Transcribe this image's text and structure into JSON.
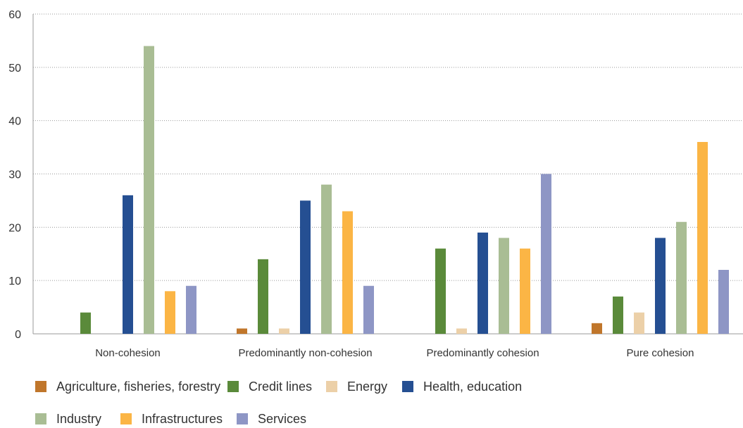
{
  "chart_data": {
    "type": "bar",
    "categories": [
      "Non-cohesion",
      "Predominantly non-cohesion",
      "Predominantly cohesion",
      "Pure cohesion"
    ],
    "series": [
      {
        "name": "Agriculture, fisheries, forestry",
        "color": "#c0762b",
        "values": [
          0,
          1,
          0,
          2
        ]
      },
      {
        "name": "Credit lines",
        "color": "#5a8a3a",
        "values": [
          4,
          14,
          16,
          7
        ]
      },
      {
        "name": "Energy",
        "color": "#ecd0a8",
        "values": [
          0,
          1,
          1,
          4
        ]
      },
      {
        "name": "Health, education",
        "color": "#254f92",
        "values": [
          26,
          25,
          19,
          18
        ]
      },
      {
        "name": "Industry",
        "color": "#a9bd94",
        "values": [
          54,
          28,
          18,
          21
        ]
      },
      {
        "name": "Infrastructures",
        "color": "#fbb545",
        "values": [
          8,
          23,
          16,
          36
        ]
      },
      {
        "name": "Services",
        "color": "#8e96c5",
        "values": [
          9,
          9,
          30,
          12
        ]
      }
    ],
    "yticks": [
      0,
      10,
      20,
      30,
      40,
      50,
      60
    ],
    "ylim": [
      0,
      60
    ],
    "grid": "horizontal-dotted",
    "legend": "bottom"
  }
}
